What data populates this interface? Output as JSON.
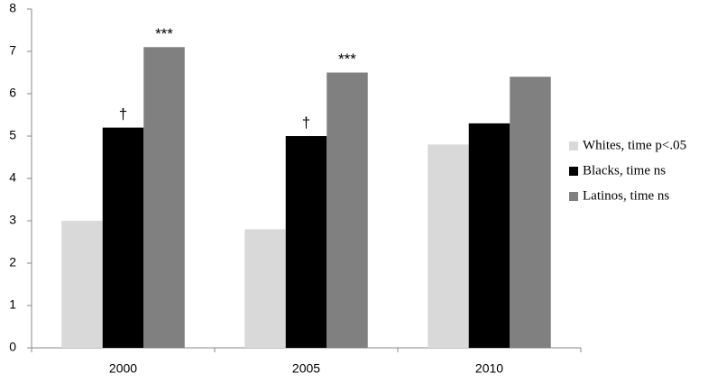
{
  "chart_data": {
    "type": "bar",
    "categories": [
      "2000",
      "2005",
      "2010"
    ],
    "series": [
      {
        "name": "Whites, time p<.05",
        "color": "#d9d9d9",
        "values": [
          3,
          2.8,
          4.8
        ],
        "annotations": [
          null,
          null,
          null
        ]
      },
      {
        "name": "Blacks, time ns",
        "color": "#000000",
        "values": [
          5.2,
          5.0,
          5.3
        ],
        "annotations": [
          "†",
          "†",
          null
        ]
      },
      {
        "name": "Latinos, time ns",
        "color": "#808080",
        "values": [
          7.1,
          6.5,
          6.4
        ],
        "annotations": [
          "***",
          "***",
          null
        ]
      }
    ],
    "ylim": [
      0,
      8
    ],
    "yticks": [
      0,
      1,
      2,
      3,
      4,
      5,
      6,
      7,
      8
    ],
    "grid": false,
    "legend": "right"
  }
}
